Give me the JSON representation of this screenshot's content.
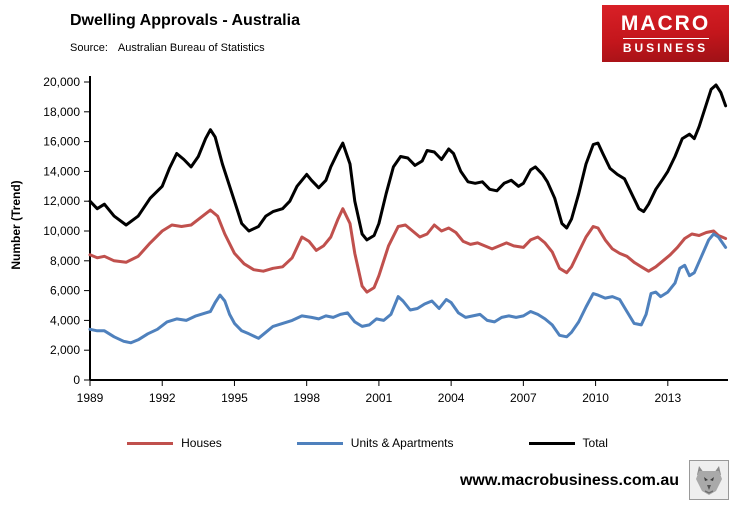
{
  "header": {
    "title": "Dwelling Approvals - Australia",
    "source_label": "Source:",
    "source_value": "Australian Bureau of Statistics"
  },
  "logo": {
    "line1": "MACRO",
    "line2": "BUSINESS",
    "bg_color": "#c4161c"
  },
  "footer": {
    "url": "www.macrobusiness.com.au",
    "wolf_logo": "wolf-emblem"
  },
  "chart_data": {
    "type": "line",
    "title": "Dwelling Approvals - Australia",
    "source": "Australian Bureau of Statistics",
    "xlabel": "",
    "ylabel": "Number (Trend)",
    "x_range": [
      1989,
      2015.5
    ],
    "y_range": [
      0,
      20000
    ],
    "x_ticks": [
      1989,
      1992,
      1995,
      1998,
      2001,
      2004,
      2007,
      2010,
      2013
    ],
    "y_tick_step": 2000,
    "grid": false,
    "legend_position": "bottom",
    "series": [
      {
        "name": "Houses",
        "color": "#c0504d",
        "points": [
          [
            1989.0,
            8400
          ],
          [
            1989.3,
            8200
          ],
          [
            1989.6,
            8300
          ],
          [
            1990.0,
            8000
          ],
          [
            1990.5,
            7900
          ],
          [
            1991.0,
            8300
          ],
          [
            1991.5,
            9200
          ],
          [
            1992.0,
            10000
          ],
          [
            1992.4,
            10400
          ],
          [
            1992.8,
            10300
          ],
          [
            1993.2,
            10400
          ],
          [
            1993.6,
            10900
          ],
          [
            1994.0,
            11400
          ],
          [
            1994.3,
            11000
          ],
          [
            1994.6,
            9800
          ],
          [
            1995.0,
            8500
          ],
          [
            1995.4,
            7800
          ],
          [
            1995.8,
            7400
          ],
          [
            1996.2,
            7300
          ],
          [
            1996.6,
            7500
          ],
          [
            1997.0,
            7600
          ],
          [
            1997.4,
            8200
          ],
          [
            1997.8,
            9600
          ],
          [
            1998.1,
            9300
          ],
          [
            1998.4,
            8700
          ],
          [
            1998.7,
            9000
          ],
          [
            1999.0,
            9600
          ],
          [
            1999.3,
            10800
          ],
          [
            1999.5,
            11500
          ],
          [
            1999.8,
            10500
          ],
          [
            2000.0,
            8500
          ],
          [
            2000.3,
            6300
          ],
          [
            2000.5,
            5900
          ],
          [
            2000.8,
            6200
          ],
          [
            2001.0,
            7000
          ],
          [
            2001.4,
            9000
          ],
          [
            2001.8,
            10300
          ],
          [
            2002.1,
            10400
          ],
          [
            2002.4,
            10000
          ],
          [
            2002.7,
            9600
          ],
          [
            2003.0,
            9800
          ],
          [
            2003.3,
            10400
          ],
          [
            2003.6,
            10000
          ],
          [
            2003.9,
            10200
          ],
          [
            2004.2,
            9900
          ],
          [
            2004.5,
            9300
          ],
          [
            2004.8,
            9100
          ],
          [
            2005.1,
            9200
          ],
          [
            2005.4,
            9000
          ],
          [
            2005.7,
            8800
          ],
          [
            2006.0,
            9000
          ],
          [
            2006.3,
            9200
          ],
          [
            2006.6,
            9000
          ],
          [
            2007.0,
            8900
          ],
          [
            2007.3,
            9400
          ],
          [
            2007.6,
            9600
          ],
          [
            2007.9,
            9200
          ],
          [
            2008.2,
            8600
          ],
          [
            2008.5,
            7500
          ],
          [
            2008.8,
            7200
          ],
          [
            2009.0,
            7600
          ],
          [
            2009.3,
            8600
          ],
          [
            2009.6,
            9600
          ],
          [
            2009.9,
            10300
          ],
          [
            2010.1,
            10200
          ],
          [
            2010.4,
            9400
          ],
          [
            2010.7,
            8800
          ],
          [
            2011.0,
            8500
          ],
          [
            2011.3,
            8300
          ],
          [
            2011.6,
            7900
          ],
          [
            2011.9,
            7600
          ],
          [
            2012.2,
            7300
          ],
          [
            2012.5,
            7600
          ],
          [
            2012.8,
            8000
          ],
          [
            2013.1,
            8400
          ],
          [
            2013.4,
            8900
          ],
          [
            2013.7,
            9500
          ],
          [
            2014.0,
            9800
          ],
          [
            2014.3,
            9700
          ],
          [
            2014.6,
            9900
          ],
          [
            2014.9,
            10000
          ],
          [
            2015.1,
            9700
          ],
          [
            2015.4,
            9500
          ]
        ]
      },
      {
        "name": "Units & Apartments",
        "color": "#4f81bd",
        "points": [
          [
            1989.0,
            3400
          ],
          [
            1989.3,
            3300
          ],
          [
            1989.6,
            3300
          ],
          [
            1990.0,
            2900
          ],
          [
            1990.4,
            2600
          ],
          [
            1990.7,
            2500
          ],
          [
            1991.0,
            2700
          ],
          [
            1991.4,
            3100
          ],
          [
            1991.8,
            3400
          ],
          [
            1992.2,
            3900
          ],
          [
            1992.6,
            4100
          ],
          [
            1993.0,
            4000
          ],
          [
            1993.4,
            4300
          ],
          [
            1993.8,
            4500
          ],
          [
            1994.0,
            4600
          ],
          [
            1994.2,
            5200
          ],
          [
            1994.4,
            5700
          ],
          [
            1994.6,
            5300
          ],
          [
            1994.8,
            4400
          ],
          [
            1995.0,
            3800
          ],
          [
            1995.3,
            3300
          ],
          [
            1995.6,
            3100
          ],
          [
            1996.0,
            2800
          ],
          [
            1996.3,
            3200
          ],
          [
            1996.6,
            3600
          ],
          [
            1997.0,
            3800
          ],
          [
            1997.4,
            4000
          ],
          [
            1997.8,
            4300
          ],
          [
            1998.2,
            4200
          ],
          [
            1998.5,
            4100
          ],
          [
            1998.8,
            4300
          ],
          [
            1999.1,
            4200
          ],
          [
            1999.4,
            4400
          ],
          [
            1999.7,
            4500
          ],
          [
            2000.0,
            3900
          ],
          [
            2000.3,
            3600
          ],
          [
            2000.6,
            3700
          ],
          [
            2000.9,
            4100
          ],
          [
            2001.2,
            4000
          ],
          [
            2001.5,
            4400
          ],
          [
            2001.8,
            5600
          ],
          [
            2002.0,
            5300
          ],
          [
            2002.3,
            4700
          ],
          [
            2002.6,
            4800
          ],
          [
            2002.9,
            5100
          ],
          [
            2003.2,
            5300
          ],
          [
            2003.5,
            4800
          ],
          [
            2003.8,
            5400
          ],
          [
            2004.0,
            5200
          ],
          [
            2004.3,
            4500
          ],
          [
            2004.6,
            4200
          ],
          [
            2004.9,
            4300
          ],
          [
            2005.2,
            4400
          ],
          [
            2005.5,
            4000
          ],
          [
            2005.8,
            3900
          ],
          [
            2006.1,
            4200
          ],
          [
            2006.4,
            4300
          ],
          [
            2006.7,
            4200
          ],
          [
            2007.0,
            4300
          ],
          [
            2007.3,
            4600
          ],
          [
            2007.6,
            4400
          ],
          [
            2007.9,
            4100
          ],
          [
            2008.2,
            3700
          ],
          [
            2008.5,
            3000
          ],
          [
            2008.8,
            2900
          ],
          [
            2009.0,
            3200
          ],
          [
            2009.3,
            3900
          ],
          [
            2009.6,
            4900
          ],
          [
            2009.9,
            5800
          ],
          [
            2010.1,
            5700
          ],
          [
            2010.4,
            5500
          ],
          [
            2010.7,
            5600
          ],
          [
            2011.0,
            5400
          ],
          [
            2011.3,
            4600
          ],
          [
            2011.6,
            3800
          ],
          [
            2011.9,
            3700
          ],
          [
            2012.1,
            4400
          ],
          [
            2012.3,
            5800
          ],
          [
            2012.5,
            5900
          ],
          [
            2012.7,
            5600
          ],
          [
            2013.0,
            5900
          ],
          [
            2013.3,
            6500
          ],
          [
            2013.5,
            7500
          ],
          [
            2013.7,
            7700
          ],
          [
            2013.9,
            7000
          ],
          [
            2014.1,
            7200
          ],
          [
            2014.4,
            8300
          ],
          [
            2014.7,
            9400
          ],
          [
            2014.9,
            9800
          ],
          [
            2015.1,
            9600
          ],
          [
            2015.4,
            8900
          ]
        ]
      },
      {
        "name": "Total",
        "color": "#000000",
        "points": [
          [
            1989.0,
            12000
          ],
          [
            1989.3,
            11500
          ],
          [
            1989.6,
            11800
          ],
          [
            1990.0,
            11000
          ],
          [
            1990.5,
            10400
          ],
          [
            1991.0,
            11000
          ],
          [
            1991.5,
            12200
          ],
          [
            1992.0,
            13000
          ],
          [
            1992.3,
            14200
          ],
          [
            1992.6,
            15200
          ],
          [
            1992.9,
            14800
          ],
          [
            1993.2,
            14300
          ],
          [
            1993.5,
            15000
          ],
          [
            1993.8,
            16200
          ],
          [
            1994.0,
            16800
          ],
          [
            1994.2,
            16300
          ],
          [
            1994.5,
            14500
          ],
          [
            1995.0,
            12000
          ],
          [
            1995.3,
            10500
          ],
          [
            1995.6,
            10000
          ],
          [
            1996.0,
            10300
          ],
          [
            1996.3,
            11000
          ],
          [
            1996.6,
            11300
          ],
          [
            1997.0,
            11500
          ],
          [
            1997.3,
            12000
          ],
          [
            1997.6,
            13000
          ],
          [
            1998.0,
            13800
          ],
          [
            1998.2,
            13400
          ],
          [
            1998.5,
            12900
          ],
          [
            1998.8,
            13400
          ],
          [
            1999.0,
            14300
          ],
          [
            1999.3,
            15300
          ],
          [
            1999.5,
            15900
          ],
          [
            1999.8,
            14500
          ],
          [
            2000.0,
            12000
          ],
          [
            2000.3,
            9800
          ],
          [
            2000.5,
            9400
          ],
          [
            2000.8,
            9700
          ],
          [
            2001.0,
            10500
          ],
          [
            2001.3,
            12500
          ],
          [
            2001.6,
            14300
          ],
          [
            2001.9,
            15000
          ],
          [
            2002.2,
            14900
          ],
          [
            2002.5,
            14400
          ],
          [
            2002.8,
            14700
          ],
          [
            2003.0,
            15400
          ],
          [
            2003.3,
            15300
          ],
          [
            2003.6,
            14800
          ],
          [
            2003.9,
            15500
          ],
          [
            2004.1,
            15200
          ],
          [
            2004.4,
            14000
          ],
          [
            2004.7,
            13300
          ],
          [
            2005.0,
            13200
          ],
          [
            2005.3,
            13300
          ],
          [
            2005.6,
            12800
          ],
          [
            2005.9,
            12700
          ],
          [
            2006.2,
            13200
          ],
          [
            2006.5,
            13400
          ],
          [
            2006.8,
            13000
          ],
          [
            2007.0,
            13200
          ],
          [
            2007.3,
            14100
          ],
          [
            2007.5,
            14300
          ],
          [
            2007.8,
            13800
          ],
          [
            2008.0,
            13300
          ],
          [
            2008.3,
            12200
          ],
          [
            2008.6,
            10500
          ],
          [
            2008.8,
            10200
          ],
          [
            2009.0,
            10800
          ],
          [
            2009.3,
            12500
          ],
          [
            2009.6,
            14500
          ],
          [
            2009.9,
            15800
          ],
          [
            2010.1,
            15900
          ],
          [
            2010.3,
            15200
          ],
          [
            2010.6,
            14200
          ],
          [
            2010.9,
            13800
          ],
          [
            2011.2,
            13500
          ],
          [
            2011.5,
            12500
          ],
          [
            2011.8,
            11500
          ],
          [
            2012.0,
            11300
          ],
          [
            2012.2,
            11800
          ],
          [
            2012.5,
            12800
          ],
          [
            2012.8,
            13500
          ],
          [
            2013.0,
            14000
          ],
          [
            2013.3,
            15000
          ],
          [
            2013.6,
            16200
          ],
          [
            2013.9,
            16500
          ],
          [
            2014.1,
            16200
          ],
          [
            2014.3,
            17000
          ],
          [
            2014.6,
            18500
          ],
          [
            2014.8,
            19500
          ],
          [
            2015.0,
            19800
          ],
          [
            2015.2,
            19300
          ],
          [
            2015.4,
            18400
          ]
        ]
      }
    ]
  }
}
